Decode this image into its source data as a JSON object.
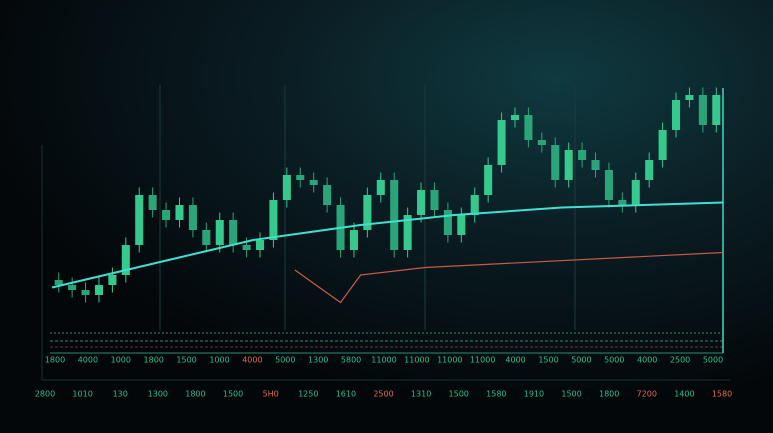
{
  "chart_data": {
    "type": "candlestick",
    "open": [
      20,
      18,
      16,
      14,
      18,
      22,
      34,
      54,
      48,
      44,
      50,
      40,
      34,
      44,
      34,
      32,
      36,
      52,
      62,
      60,
      58,
      50,
      32,
      40,
      54,
      60,
      32,
      46,
      56,
      48,
      38,
      46,
      54,
      66,
      84,
      86,
      76,
      74,
      60,
      72,
      68,
      64,
      52,
      50,
      60,
      68,
      80,
      92,
      94,
      82
    ],
    "high": [
      23,
      21,
      19,
      21,
      25,
      37,
      57,
      57,
      51,
      53,
      53,
      43,
      47,
      47,
      37,
      39,
      55,
      65,
      65,
      63,
      61,
      53,
      43,
      57,
      63,
      63,
      49,
      59,
      59,
      51,
      49,
      57,
      69,
      87,
      89,
      89,
      79,
      77,
      75,
      75,
      71,
      67,
      55,
      63,
      71,
      83,
      95,
      97,
      97,
      97
    ],
    "low": [
      15,
      13,
      11,
      11,
      15,
      19,
      31,
      45,
      41,
      41,
      37,
      31,
      31,
      31,
      29,
      29,
      33,
      49,
      57,
      55,
      47,
      29,
      29,
      37,
      51,
      29,
      29,
      43,
      45,
      35,
      35,
      43,
      51,
      63,
      81,
      73,
      71,
      57,
      57,
      65,
      61,
      49,
      47,
      47,
      57,
      65,
      77,
      89,
      79,
      79
    ],
    "close": [
      18,
      16,
      14,
      18,
      22,
      34,
      54,
      48,
      44,
      50,
      40,
      34,
      44,
      34,
      32,
      36,
      52,
      62,
      60,
      58,
      50,
      32,
      40,
      54,
      60,
      32,
      46,
      56,
      48,
      38,
      46,
      54,
      66,
      84,
      86,
      76,
      74,
      60,
      72,
      68,
      64,
      52,
      50,
      60,
      68,
      80,
      92,
      94,
      82,
      94
    ],
    "up_color": "#35c98e",
    "down_color": "#2aa57a",
    "xlim": [
      0,
      50
    ],
    "ylim": [
      0,
      100
    ],
    "lines": [
      {
        "color": "#3fe0d0",
        "x": [
          0,
          15,
          23,
          30,
          38,
          50
        ],
        "values": [
          17,
          36,
          42,
          46,
          49,
          51
        ]
      },
      {
        "color": "#c85a48",
        "x": [
          18.1,
          21.5,
          23,
          27.8,
          50
        ],
        "values": [
          24,
          11,
          22,
          25,
          31
        ]
      }
    ],
    "x_label_rows": [
      {
        "labels": [
          "1800",
          "4000",
          "1000",
          "1800",
          "1500",
          "1000",
          "4000",
          "5000",
          "1300",
          "5800",
          "11000",
          "11000",
          "11000",
          "11000",
          "4000",
          "1500",
          "5000",
          "5000",
          "4000",
          "2500",
          "5000"
        ],
        "color": "#2fbf8a",
        "highlight_color": "#e06a55",
        "highlighted": [
          6
        ]
      },
      {
        "labels": [
          "2800",
          "1010",
          "130",
          "1300",
          "1800",
          "1500",
          "5H0",
          "1250",
          "1610",
          "2500",
          "1310",
          "1500",
          "1580",
          "1910",
          "1500",
          "1800",
          "7200",
          "1400",
          "1580"
        ],
        "color": "#2fbf8a",
        "highlight_color": "#e06a55",
        "highlighted": [
          6,
          9,
          16,
          18
        ]
      }
    ]
  }
}
